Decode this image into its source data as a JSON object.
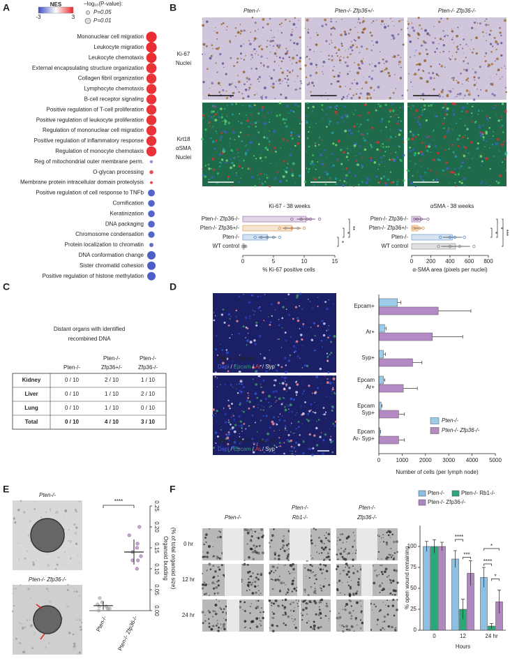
{
  "panel_labels": [
    "A",
    "B",
    "C",
    "D",
    "E",
    "F"
  ],
  "panel_a": {
    "type": "dot",
    "colorbar": {
      "title": "NES",
      "min": -3,
      "max": 3,
      "colors": [
        "#3b4cc0",
        "#ffffff",
        "#e8262b"
      ]
    },
    "size_legend": {
      "title": "−log₁₀(P-value):",
      "items": [
        {
          "label": "P=0.05",
          "value": 1.3
        },
        {
          "label": "P=0.01",
          "value": 2
        }
      ]
    },
    "terms": [
      "Mononuclear cell migration",
      "Leukocyte migration",
      "Leukocyte chemotaxis",
      "External encapsulating structure organization",
      "Collagen fibril organization",
      "Lymphocyte chemotaxis",
      "B-cell receptor signaling",
      "Positive regulation of T-cell proliferation",
      "Positive regulation of leukocyte proliferation",
      "Regulation of mononuclear cell migration",
      "Positive regulation of inflammatory response",
      "Regulation of monocyte chemotaxis",
      "Reg of mitochondrial outer membrane perm.",
      "O-glycan processing",
      "Membrane protein intracellular domain proteolysis",
      "Positive regulation of cell response to TNFb",
      "Cornification",
      "Keratinization",
      "DNA packaging",
      "Chromosome condensation",
      "Protein localization to chromatin",
      "DNA conformation change",
      "Sister chromatid cohesion",
      "Positive regulation of histone methylation"
    ],
    "nes": [
      2.9,
      2.9,
      2.9,
      2.8,
      2.8,
      2.8,
      2.8,
      2.8,
      2.8,
      2.8,
      2.8,
      2.8,
      -1.8,
      2.4,
      2.5,
      -2.6,
      -2.6,
      -2.6,
      -2.6,
      -2.6,
      -2.4,
      -2.7,
      -2.7,
      -2.7
    ],
    "neglog10p": [
      3.8,
      3.8,
      3.7,
      3.7,
      3.6,
      3.6,
      3.6,
      3.6,
      3.6,
      3.6,
      3.6,
      3.6,
      1.1,
      1.4,
      1.0,
      2.5,
      2.4,
      2.4,
      2.4,
      2.3,
      1.5,
      3.0,
      3.0,
      3.0
    ]
  },
  "panel_b": {
    "image_columns": [
      "Pten-/-",
      "Pten-/- Zfp36+/-",
      "Pten-/- Zfp36-/-"
    ],
    "row_labels": [
      [
        {
          "text": "Ki-67",
          "color": "#8b5a2b"
        },
        {
          "text": "Nuclei",
          "color": "#5c4a9c"
        }
      ],
      [
        {
          "text": "Krt18",
          "color": "#2ea043"
        },
        {
          "text": "αSMA",
          "color": "#e03030"
        },
        {
          "text": "Nuclei",
          "color": "#3a6fd0"
        }
      ]
    ],
    "charts": [
      {
        "type": "hdot",
        "title": "Ki-67 - 38 weeks",
        "categories": [
          "Pten-/- Zfp36-/-",
          "Pten-/- Zfp36+/-",
          "Pten-/-",
          "WT control"
        ],
        "colors": [
          "#8e5a9e",
          "#d9924a",
          "#5a8fc8",
          "#888888"
        ],
        "points": [
          [
            8,
            9.5,
            10.5,
            11,
            12.5
          ],
          [
            6,
            7,
            8,
            9,
            10
          ],
          [
            2,
            3,
            4,
            5,
            6
          ],
          [
            0,
            0.2,
            0.3,
            0.5
          ]
        ],
        "values": [
          10.3,
          8,
          4,
          0.25
        ],
        "errors": [
          1.5,
          1.5,
          1.5,
          0.3
        ],
        "xlim": [
          0,
          15
        ],
        "xticks": [
          0,
          5,
          10,
          15
        ],
        "xlabel": "% Ki-67 positive cells",
        "annotations": [
          {
            "text": "*",
            "rows": [
              2,
              3
            ]
          },
          {
            "text": "*",
            "rows": [
              1,
              2
            ]
          },
          {
            "text": "**",
            "rows": [
              0,
              2
            ]
          }
        ]
      },
      {
        "type": "hdot",
        "title": "αSMA - 38 weeks",
        "categories": [
          "Pten-/- Zfp36-/-",
          "Pten-/- Zfp36+/-",
          "Pten-/-",
          "WT control"
        ],
        "colors": [
          "#8e5a9e",
          "#d9924a",
          "#5a8fc8",
          "#888888"
        ],
        "points": [
          [
            30,
            60,
            100,
            170
          ],
          [
            20,
            40,
            80,
            120
          ],
          [
            300,
            400,
            450,
            550
          ],
          [
            280,
            400,
            500,
            650
          ]
        ],
        "values": [
          90,
          65,
          425,
          458
        ],
        "errors": [
          60,
          45,
          100,
          150
        ],
        "xlim": [
          0,
          800
        ],
        "xticks": [
          0,
          200,
          400,
          600,
          800
        ],
        "xlabel": "α-SMA area (pixels per nuclei)",
        "annotations": [
          {
            "text": "*",
            "rows": [
              1,
              2
            ]
          },
          {
            "text": "*",
            "rows": [
              0,
              2
            ]
          },
          {
            "text": "***",
            "rows": [
              0,
              3
            ]
          }
        ]
      }
    ]
  },
  "panel_c": {
    "title": [
      "Distant organs with identified",
      "recombined DNA"
    ],
    "columns": [
      [
        "Pten-/-"
      ],
      [
        "Pten-/-",
        "Zfp36+/-"
      ],
      [
        "Pten-/-",
        "Zfp36-/-"
      ]
    ],
    "rows": [
      [
        "Kidney",
        "0 / 10",
        "2 / 10",
        "1 / 10"
      ],
      [
        "Liver",
        "0 / 10",
        "1 / 10",
        "2 / 10"
      ],
      [
        "Lung",
        "0 / 10",
        "1 / 10",
        "0 / 10"
      ],
      [
        "Total",
        "0 / 10",
        "4 / 10",
        "3 / 10"
      ]
    ]
  },
  "panel_d": {
    "image_titles": [
      "Pten-/- (merge)",
      "Pten-/- Zfp36-/- (merge)"
    ],
    "channels": {
      "names": [
        "Dapi",
        "Epcam",
        "Ar",
        "Syp"
      ],
      "colors": [
        "#4a5fe0",
        "#2aa060",
        "#e04040",
        "#e8e8e8"
      ],
      "separator": "/"
    },
    "chart": {
      "type": "hbar",
      "categories": [
        [
          "Epcam+"
        ],
        [
          "Ar+"
        ],
        [
          "Syp+"
        ],
        [
          "Epcam",
          "Ar+"
        ],
        [
          "Epcam",
          "Syp+"
        ],
        [
          "Epcam",
          "Ar- Syp+"
        ]
      ],
      "series": [
        {
          "name": "Pten-/-",
          "color": "#9dcbea",
          "values": [
            800,
            250,
            200,
            200,
            100,
            50
          ],
          "errors": [
            150,
            60,
            80,
            60,
            40,
            20
          ]
        },
        {
          "name": "Pten-/- Zfp36-/-",
          "color": "#b48ac4",
          "values": [
            2550,
            2300,
            1450,
            1050,
            850,
            850
          ],
          "errors": [
            1400,
            1300,
            400,
            600,
            250,
            250
          ]
        }
      ],
      "xlim": [
        0,
        5000
      ],
      "xticks": [
        0,
        1000,
        2000,
        3000,
        4000,
        5000
      ],
      "xlabel": "Number of cells (per lymph node)",
      "legend": "lower right"
    }
  },
  "panel_e": {
    "images": [
      "Pten-/-",
      "Pten-/- Zfp36-/-"
    ],
    "chart": {
      "type": "dotbar",
      "categories": [
        "Pten-/-",
        "Pten-/- Zfp36-/-"
      ],
      "colors": [
        "#9a9a9a",
        "#8e5a9e"
      ],
      "points": [
        [
          0,
          0.005,
          0.01,
          0.015,
          0.02,
          0.03,
          0.005,
          0.01
        ],
        [
          0.1,
          0.12,
          0.13,
          0.14,
          0.15,
          0.16,
          0.18,
          0.2,
          0.12
        ]
      ],
      "values": [
        0.012,
        0.14
      ],
      "errors": [
        0.01,
        0.03
      ],
      "ylim": [
        0,
        0.25
      ],
      "yticks": [
        {
          "value": 0,
          "label": "0.00"
        },
        {
          "value": 0.05,
          "label": "0.05"
        },
        {
          "value": 0.1,
          "label": "0.10"
        },
        {
          "value": 0.15,
          "label": "0.15"
        },
        {
          "value": 0.2,
          "label": "0.20"
        },
        {
          "value": 0.25,
          "label": "0.25"
        }
      ],
      "ylabel": [
        "Organoid budding",
        "(% of total organoid size)"
      ],
      "annotation": "****"
    }
  },
  "panel_f": {
    "columns": [
      [
        "Pten-/-"
      ],
      [
        "Pten-/-",
        "Rb1-/-"
      ],
      [
        "Pten-/-",
        "Zfp36-/-"
      ]
    ],
    "rows": [
      "0 hr",
      "12 hr",
      "24 hr"
    ],
    "chart": {
      "type": "gbar",
      "categories": [
        "0",
        "12",
        "24 hr"
      ],
      "series": [
        {
          "name": "Pten-/-",
          "color": "#8ec0e4",
          "values": [
            100,
            85,
            63
          ],
          "errors": [
            6,
            10,
            12
          ]
        },
        {
          "name": "Pten-/- Rb1-/-",
          "color": "#2aa87a",
          "values": [
            100,
            25,
            5
          ],
          "errors": [
            8,
            12,
            3
          ]
        },
        {
          "name": "Pten-/- Zfp36-/-",
          "color": "#b088c0",
          "values": [
            100,
            68,
            34
          ],
          "errors": [
            5,
            15,
            14
          ]
        }
      ],
      "ylim": [
        0,
        125
      ],
      "yticks": [
        0,
        25,
        50,
        75,
        100
      ],
      "ylabel": "% open wound remaining",
      "xlabel": "Hours",
      "annotations": [
        {
          "text": "***",
          "category": 1,
          "series": [
            1,
            2
          ]
        },
        {
          "text": "****",
          "category": 1,
          "series": [
            0,
            1
          ]
        },
        {
          "text": "****",
          "category": 2,
          "series": [
            0,
            1
          ]
        },
        {
          "text": "*",
          "category": 2,
          "series": [
            1,
            2
          ]
        },
        {
          "text": "*",
          "category": 2,
          "series": [
            0,
            2
          ]
        }
      ]
    }
  }
}
